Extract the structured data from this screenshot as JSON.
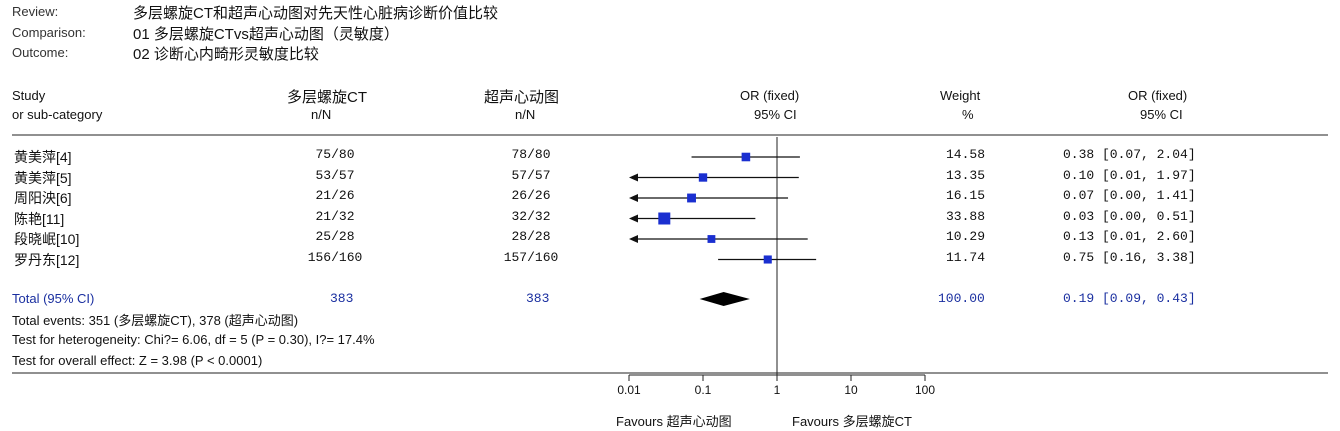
{
  "meta": {
    "review_label": "Review:",
    "review_value": "多层螺旋CT和超声心动图对先天性心脏病诊断价值比较",
    "comparison_label": "Comparison:",
    "comparison_value": "01 多层螺旋CTvs超声心动图（灵敏度）",
    "outcome_label": "Outcome:",
    "outcome_value": "02 诊断心内畸形灵敏度比较"
  },
  "header": {
    "study": "Study",
    "subcat": "or sub-category",
    "group1": "多层螺旋CT",
    "group1_sub": "n/N",
    "group2": "超声心动图",
    "group2_sub": "n/N",
    "or_col": "OR (fixed)",
    "or_col_sub": "95% CI",
    "weight_col": "Weight",
    "weight_sub": "%",
    "or_col2": "OR (fixed)",
    "or_col2_sub": "95% CI"
  },
  "summary": {
    "total_label": "Total (95% CI)",
    "total1": "383",
    "total2": "383",
    "weight": "100.00",
    "ci_text": "0.19 [0.09, 0.43]",
    "events": "Total events: 351 (多层螺旋CT), 378 (超声心动图)",
    "heterogeneity": "Test for heterogeneity: Chi?= 6.06, df = 5 (P = 0.30), I?= 17.4%",
    "overall": "Test for overall effect: Z = 3.98 (P < 0.0001)"
  },
  "footer": {
    "favours_left": "Favours 超声心动图",
    "favours_right": "Favours 多层螺旋CT"
  },
  "chart_data": {
    "type": "forest",
    "x_scale": "log",
    "xlim": [
      0.01,
      100
    ],
    "ticks": [
      {
        "value": 0.01,
        "label": "0.01"
      },
      {
        "value": 0.1,
        "label": "0.1"
      },
      {
        "value": 1,
        "label": "1"
      },
      {
        "value": 10,
        "label": "10"
      },
      {
        "value": 100,
        "label": "100"
      }
    ],
    "studies": [
      {
        "name": "黄美萍[4]",
        "n1": "75/80",
        "n2": "78/80",
        "weight": "14.58",
        "ci_text": "0.38 [0.07, 2.04]",
        "or": 0.38,
        "lo": 0.07,
        "hi": 2.04,
        "arrow_left": false
      },
      {
        "name": "黄美萍[5]",
        "n1": "53/57",
        "n2": "57/57",
        "weight": "13.35",
        "ci_text": "0.10 [0.01, 1.97]",
        "or": 0.1,
        "lo": 0.01,
        "hi": 1.97,
        "arrow_left": true
      },
      {
        "name": "周阳泱[6]",
        "n1": "21/26",
        "n2": "26/26",
        "weight": "16.15",
        "ci_text": "0.07 [0.00, 1.41]",
        "or": 0.07,
        "lo": 0.0,
        "hi": 1.41,
        "arrow_left": true
      },
      {
        "name": "陈艳[11]",
        "n1": "21/32",
        "n2": "32/32",
        "weight": "33.88",
        "ci_text": "0.03 [0.00, 0.51]",
        "or": 0.03,
        "lo": 0.0,
        "hi": 0.51,
        "arrow_left": true
      },
      {
        "name": "段晓岷[10]",
        "n1": "25/28",
        "n2": "28/28",
        "weight": "10.29",
        "ci_text": "0.13 [0.01, 2.60]",
        "or": 0.13,
        "lo": 0.01,
        "hi": 2.6,
        "arrow_left": true
      },
      {
        "name": "罗丹东[12]",
        "n1": "156/160",
        "n2": "157/160",
        "weight": "11.74",
        "ci_text": "0.75 [0.16, 3.38]",
        "or": 0.75,
        "lo": 0.16,
        "hi": 3.38,
        "arrow_left": false
      }
    ],
    "pooled": {
      "or": 0.19,
      "lo": 0.09,
      "hi": 0.43
    }
  }
}
